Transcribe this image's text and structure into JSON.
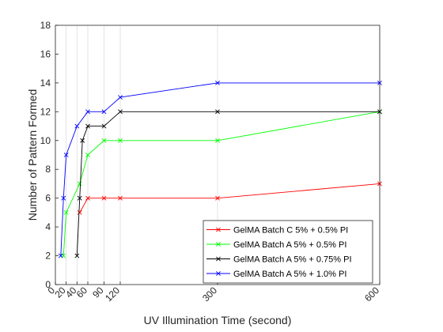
{
  "chart_data": {
    "type": "line",
    "title": "",
    "xlabel": "UV Illumination Time (second)",
    "ylabel": "Number of Pattern Formed",
    "xlim": [
      0,
      600
    ],
    "ylim": [
      0,
      18
    ],
    "xticks": [
      0,
      20,
      40,
      60,
      90,
      120,
      300,
      600
    ],
    "yticks": [
      0,
      2,
      4,
      6,
      8,
      10,
      12,
      14,
      16,
      18
    ],
    "grid": "vertical",
    "legend_position": "bottom-right",
    "marker": "x",
    "series": [
      {
        "name": "GelMA Batch C 5% + 0.5% PI",
        "color": "#ff0000",
        "x": [
          45,
          60,
          90,
          120,
          300,
          600
        ],
        "y": [
          5,
          6,
          6,
          6,
          6,
          7
        ]
      },
      {
        "name": "GelMA Batch A 5% + 0.5% PI",
        "color": "#00ff00",
        "x": [
          15,
          20,
          45,
          60,
          90,
          120,
          300,
          600
        ],
        "y": [
          2,
          5,
          7,
          9,
          10,
          10,
          10,
          12
        ]
      },
      {
        "name": "GelMA Batch A 5% + 0.75% PI",
        "color": "#000000",
        "x": [
          40,
          45,
          50,
          60,
          90,
          120,
          300,
          600
        ],
        "y": [
          2,
          6,
          10,
          11,
          11,
          12,
          12,
          12
        ]
      },
      {
        "name": "GelMA Batch A 5% + 1.0% PI",
        "color": "#0000ff",
        "x": [
          10,
          15,
          20,
          40,
          60,
          90,
          120,
          300,
          600
        ],
        "y": [
          2,
          6,
          9,
          11,
          12,
          12,
          13,
          14,
          14
        ]
      }
    ]
  }
}
